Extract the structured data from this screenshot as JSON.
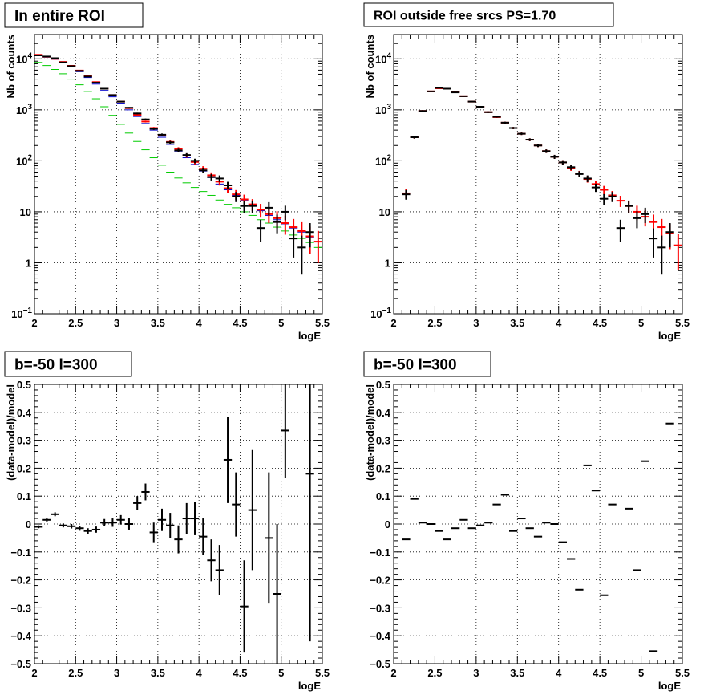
{
  "chart_data": [
    {
      "type": "scatter",
      "title": "In entire ROI",
      "xlabel": "logE",
      "ylabel": "Nb of counts",
      "xlim": [
        2,
        5.5
      ],
      "ylim": [
        0.1,
        30000
      ],
      "log_y": true,
      "grid": true,
      "x_ticks": [
        "2",
        "2.5",
        "3",
        "3.5",
        "4",
        "4.5",
        "5",
        "5.5"
      ],
      "y_ticks": [
        {
          "value": 0.1,
          "label": "10",
          "sup": "−1"
        },
        {
          "value": 1,
          "label": "1",
          "sup": ""
        },
        {
          "value": 10,
          "label": "10",
          "sup": ""
        },
        {
          "value": 100,
          "label": "10",
          "sup": "2"
        },
        {
          "value": 1000,
          "label": "10",
          "sup": "3"
        },
        {
          "value": 10000,
          "label": "10",
          "sup": "4"
        }
      ],
      "series": [
        {
          "color": "#00cc00",
          "errors": false,
          "x": [
            2.05,
            2.15,
            2.25,
            2.35,
            2.45,
            2.55,
            2.65,
            2.75,
            2.85,
            2.95,
            3.05,
            3.15,
            3.25,
            3.35,
            3.45,
            3.55,
            3.65,
            3.75,
            3.85,
            3.95,
            4.05,
            4.15,
            4.25,
            4.35,
            4.45,
            4.55,
            4.65,
            4.75,
            4.85,
            4.95,
            5.05,
            5.15,
            5.25,
            5.35,
            5.45
          ],
          "y": [
            8500,
            7400,
            6200,
            5100,
            4000,
            3100,
            2300,
            1650,
            1150,
            780,
            520,
            350,
            240,
            165,
            115,
            82,
            60,
            46,
            37,
            30,
            25,
            21,
            17,
            14,
            12,
            10,
            8.5,
            7,
            6,
            5,
            4.2,
            3.5,
            3,
            2.5,
            2
          ]
        },
        {
          "color": "#0000cc",
          "errors": false,
          "x": [
            2.05,
            2.15,
            2.25,
            2.35,
            2.45,
            2.55,
            2.65,
            2.75,
            2.85,
            2.95,
            3.05,
            3.15,
            3.25,
            3.35,
            3.45,
            3.55,
            3.65,
            3.75,
            3.85,
            3.95,
            4.05,
            4.15,
            4.25,
            4.35,
            4.45,
            4.55,
            4.65,
            4.75,
            4.85,
            4.95,
            5.05,
            5.15,
            5.25,
            5.35,
            5.45
          ],
          "y": [
            11500,
            10800,
            9800,
            8400,
            7000,
            5600,
            4300,
            3200,
            2400,
            1800,
            1350,
            1000,
            740,
            540,
            400,
            290,
            210,
            155,
            115,
            85,
            63,
            47,
            35,
            27,
            21,
            16.5,
            13,
            10.5,
            8.5,
            7,
            5.8,
            4.8,
            4,
            3.2,
            2.6
          ]
        },
        {
          "color": "#ff0000",
          "errors": true,
          "x": [
            2.05,
            2.15,
            2.25,
            2.35,
            2.45,
            2.55,
            2.65,
            2.75,
            2.85,
            2.95,
            3.05,
            3.15,
            3.25,
            3.35,
            3.45,
            3.55,
            3.65,
            3.75,
            3.85,
            3.95,
            4.05,
            4.15,
            4.25,
            4.35,
            4.45,
            4.55,
            4.65,
            4.75,
            4.85,
            4.95,
            5.05,
            5.15,
            5.25,
            5.35,
            5.45
          ],
          "y": [
            12000,
            11000,
            10000,
            8700,
            7300,
            5900,
            4600,
            3500,
            2600,
            1950,
            1450,
            1080,
            800,
            590,
            440,
            320,
            235,
            172,
            127,
            95,
            70,
            52,
            39,
            29,
            22,
            17.5,
            14,
            11,
            9,
            7.5,
            6,
            5,
            4.2,
            3.3,
            2.6
          ]
        },
        {
          "color": "#000000",
          "errors": true,
          "x": [
            2.05,
            2.15,
            2.25,
            2.35,
            2.45,
            2.55,
            2.65,
            2.75,
            2.85,
            2.95,
            3.05,
            3.15,
            3.25,
            3.35,
            3.45,
            3.55,
            3.65,
            3.75,
            3.85,
            3.95,
            4.05,
            4.15,
            4.25,
            4.35,
            4.45,
            4.55,
            4.65,
            4.75,
            4.85,
            4.95,
            5.05,
            5.15,
            5.25,
            5.35
          ],
          "y": [
            11700,
            11100,
            10300,
            8500,
            7200,
            5800,
            4500,
            3400,
            2600,
            1950,
            1450,
            1100,
            850,
            650,
            425,
            325,
            230,
            160,
            130,
            100,
            65,
            48,
            45,
            33,
            20,
            13,
            13,
            4.8,
            12,
            6.3,
            10,
            3,
            2,
            4
          ]
        }
      ]
    },
    {
      "type": "scatter",
      "title": "ROI outside free srcs PS=1.70",
      "xlabel": "logE",
      "ylabel": "Nb of counts",
      "xlim": [
        2,
        5.5
      ],
      "ylim": [
        0.1,
        30000
      ],
      "log_y": true,
      "grid": true,
      "x_ticks": [
        "2",
        "2.5",
        "3",
        "3.5",
        "4",
        "4.5",
        "5",
        "5.5"
      ],
      "y_ticks": [
        {
          "value": 0.1,
          "label": "10",
          "sup": "−1"
        },
        {
          "value": 1,
          "label": "1",
          "sup": ""
        },
        {
          "value": 10,
          "label": "10",
          "sup": ""
        },
        {
          "value": 100,
          "label": "10",
          "sup": "2"
        },
        {
          "value": 1000,
          "label": "10",
          "sup": "3"
        },
        {
          "value": 10000,
          "label": "10",
          "sup": "4"
        }
      ],
      "series": [
        {
          "color": "#ff0000",
          "errors": true,
          "x": [
            2.15,
            2.25,
            2.35,
            2.45,
            2.55,
            2.65,
            2.75,
            2.85,
            2.95,
            3.05,
            3.15,
            3.25,
            3.35,
            3.45,
            3.55,
            3.65,
            3.75,
            3.85,
            3.95,
            4.05,
            4.15,
            4.25,
            4.35,
            4.45,
            4.55,
            4.65,
            4.75,
            4.85,
            4.95,
            5.05,
            5.15,
            5.25,
            5.35,
            5.45
          ],
          "y": [
            23,
            290,
            950,
            2300,
            2650,
            2600,
            2250,
            1850,
            1450,
            1150,
            900,
            720,
            560,
            440,
            340,
            260,
            200,
            155,
            120,
            93,
            72,
            56,
            44,
            35,
            27,
            21,
            16.5,
            13,
            10,
            8,
            6.3,
            5,
            3.8,
            2.2
          ]
        },
        {
          "color": "#000000",
          "errors": true,
          "x": [
            2.15,
            2.25,
            2.35,
            2.45,
            2.55,
            2.65,
            2.75,
            2.85,
            2.95,
            3.05,
            3.15,
            3.25,
            3.35,
            3.45,
            3.55,
            3.65,
            3.75,
            3.85,
            3.95,
            4.05,
            4.15,
            4.25,
            4.35,
            4.45,
            4.55,
            4.65,
            4.75,
            4.85,
            4.95,
            5.05,
            5.15,
            5.25,
            5.35
          ],
          "y": [
            22,
            290,
            950,
            2300,
            2700,
            2600,
            2200,
            1850,
            1450,
            1150,
            900,
            730,
            560,
            440,
            340,
            260,
            200,
            155,
            120,
            93,
            75,
            55,
            45,
            30,
            18,
            20,
            4.8,
            13,
            7.5,
            9,
            3,
            2,
            4
          ]
        }
      ]
    },
    {
      "type": "scatter",
      "title": "b=-50 l=300",
      "xlabel": "logE",
      "ylabel": "(data-model)/model",
      "xlim": [
        2,
        5.5
      ],
      "ylim": [
        -0.5,
        0.5
      ],
      "log_y": false,
      "grid": true,
      "x_ticks": [
        "2",
        "2.5",
        "3",
        "3.5",
        "4",
        "4.5",
        "5",
        "5.5"
      ],
      "y_ticks": [
        {
          "value": -0.5,
          "label": "−0.5",
          "sup": ""
        },
        {
          "value": -0.4,
          "label": "−0.4",
          "sup": ""
        },
        {
          "value": -0.3,
          "label": "−0.3",
          "sup": ""
        },
        {
          "value": -0.2,
          "label": "−0.2",
          "sup": ""
        },
        {
          "value": -0.1,
          "label": "−0.1",
          "sup": ""
        },
        {
          "value": 0,
          "label": "0",
          "sup": ""
        },
        {
          "value": 0.1,
          "label": "0.1",
          "sup": ""
        },
        {
          "value": 0.2,
          "label": "0.2",
          "sup": ""
        },
        {
          "value": 0.3,
          "label": "0.3",
          "sup": ""
        },
        {
          "value": 0.4,
          "label": "0.4",
          "sup": ""
        },
        {
          "value": 0.5,
          "label": "0.5",
          "sup": ""
        }
      ],
      "series": [
        {
          "color": "#000000",
          "errors": true,
          "x": [
            2.05,
            2.15,
            2.25,
            2.35,
            2.45,
            2.55,
            2.65,
            2.75,
            2.85,
            2.95,
            3.05,
            3.15,
            3.25,
            3.35,
            3.45,
            3.55,
            3.65,
            3.75,
            3.85,
            3.95,
            4.05,
            4.15,
            4.25,
            4.35,
            4.45,
            4.55,
            4.65,
            4.85,
            4.95,
            5.05,
            5.35
          ],
          "y": [
            -0.01,
            0.015,
            0.035,
            -0.005,
            -0.008,
            -0.015,
            -0.025,
            -0.02,
            0.005,
            0.005,
            0.015,
            0.0,
            0.075,
            0.115,
            -0.03,
            0.015,
            -0.005,
            -0.055,
            0.02,
            0.02,
            -0.045,
            -0.13,
            -0.165,
            0.23,
            0.07,
            -0.295,
            0.05,
            -0.05,
            -0.25,
            0.335,
            0.18
          ],
          "yerr": [
            0.005,
            0.006,
            0.007,
            0.007,
            0.008,
            0.009,
            0.01,
            0.011,
            0.013,
            0.015,
            0.017,
            0.02,
            0.025,
            0.03,
            0.035,
            0.04,
            0.045,
            0.05,
            0.055,
            0.06,
            0.065,
            0.075,
            0.09,
            0.155,
            0.115,
            0.165,
            0.215,
            0.235,
            0.25,
            0.17,
            0.6
          ]
        }
      ]
    },
    {
      "type": "scatter",
      "title": "b=-50 l=300",
      "xlabel": "logE",
      "ylabel": "(data-model)/model",
      "xlim": [
        2,
        5.5
      ],
      "ylim": [
        -0.5,
        0.5
      ],
      "log_y": false,
      "grid": true,
      "x_ticks": [
        "2",
        "2.5",
        "3",
        "3.5",
        "4",
        "4.5",
        "5",
        "5.5"
      ],
      "y_ticks": [
        {
          "value": -0.5,
          "label": "−0.5",
          "sup": ""
        },
        {
          "value": -0.4,
          "label": "−0.4",
          "sup": ""
        },
        {
          "value": -0.3,
          "label": "−0.3",
          "sup": ""
        },
        {
          "value": -0.2,
          "label": "−0.2",
          "sup": ""
        },
        {
          "value": -0.1,
          "label": "−0.1",
          "sup": ""
        },
        {
          "value": 0,
          "label": "0",
          "sup": ""
        },
        {
          "value": 0.1,
          "label": "0.1",
          "sup": ""
        },
        {
          "value": 0.2,
          "label": "0.2",
          "sup": ""
        },
        {
          "value": 0.3,
          "label": "0.3",
          "sup": ""
        },
        {
          "value": 0.4,
          "label": "0.4",
          "sup": ""
        },
        {
          "value": 0.5,
          "label": "0.5",
          "sup": ""
        }
      ],
      "series": [
        {
          "color": "#000000",
          "errors": true,
          "x": [
            2.15,
            2.25,
            2.35,
            2.45,
            2.55,
            2.65,
            2.75,
            2.85,
            2.95,
            3.05,
            3.15,
            3.25,
            3.35,
            3.45,
            3.55,
            3.65,
            3.75,
            3.85,
            3.95,
            4.05,
            4.15,
            4.25,
            4.35,
            4.45,
            4.55,
            4.65,
            4.85,
            4.95,
            5.05,
            5.15,
            5.35
          ],
          "y": [
            -0.055,
            0.09,
            0.005,
            0.0,
            -0.025,
            -0.055,
            -0.015,
            0.015,
            -0.015,
            -0.005,
            0.005,
            0.07,
            0.105,
            -0.025,
            0.02,
            -0.015,
            -0.045,
            0.005,
            0.0,
            -0.065,
            -0.125,
            -0.235,
            0.21,
            0.12,
            -0.255,
            0.07,
            0.055,
            -0.165,
            0.225,
            -0.455,
            0.36
          ]
        }
      ]
    }
  ]
}
